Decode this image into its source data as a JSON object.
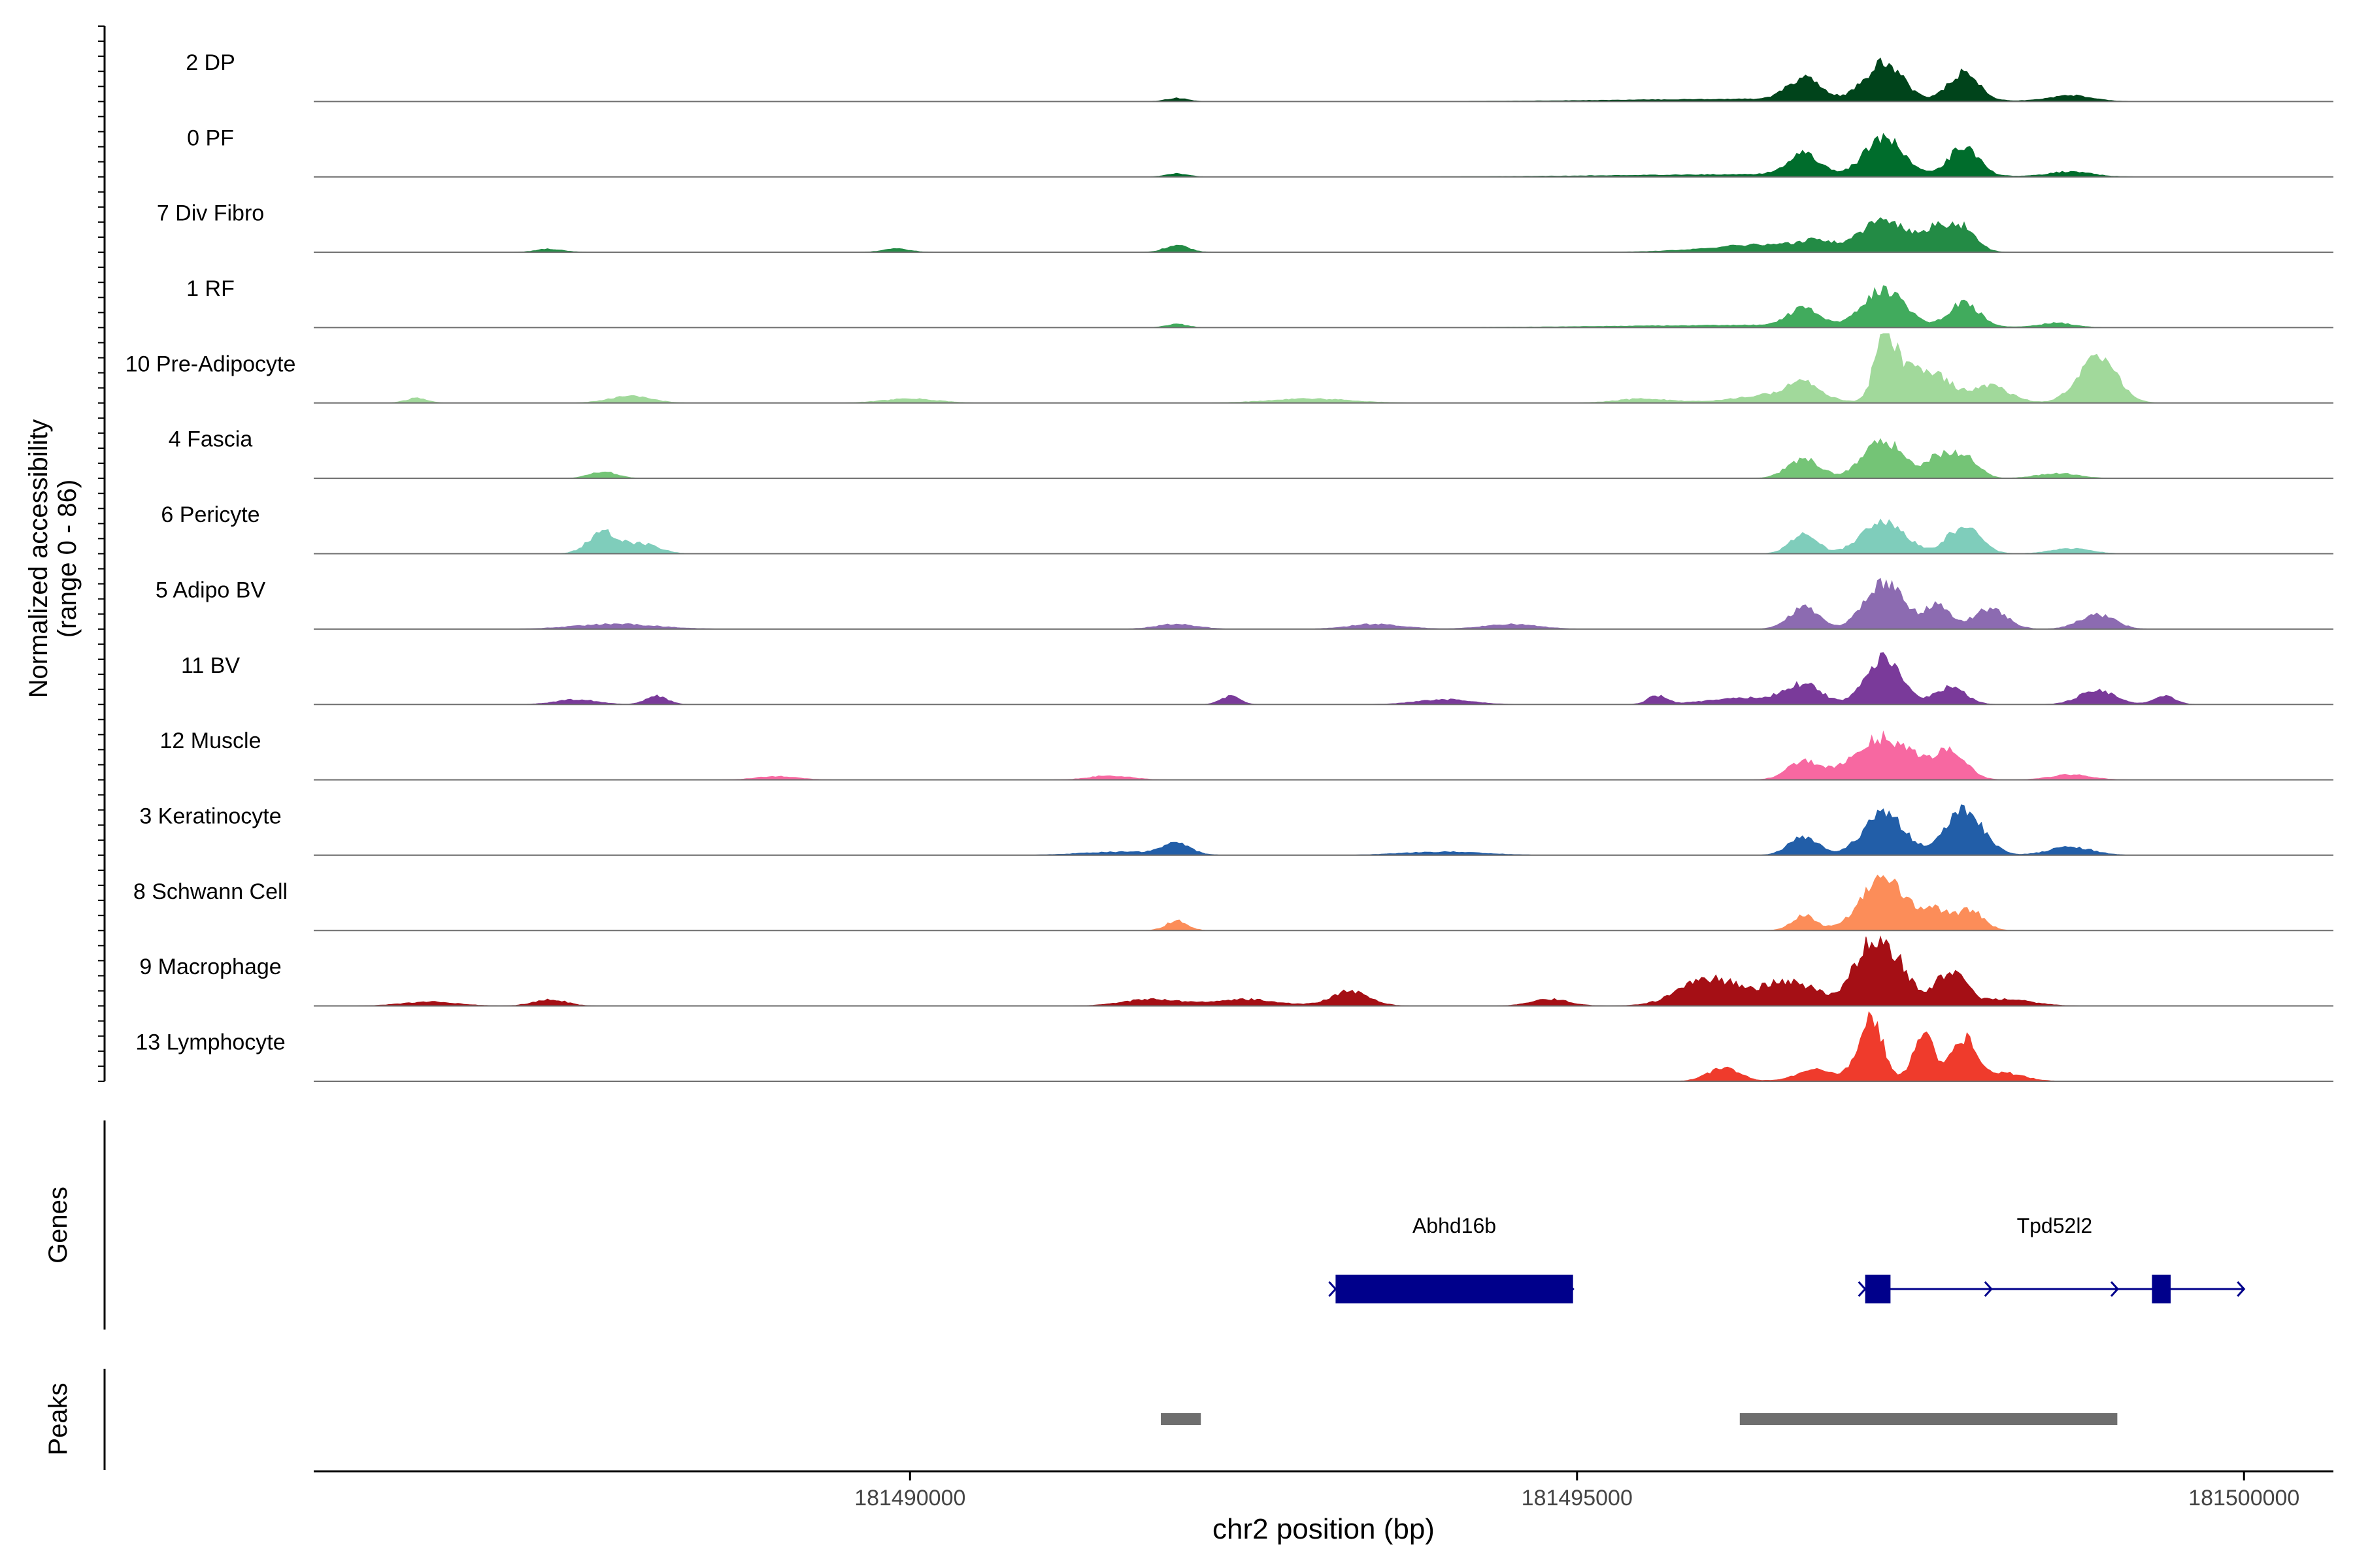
{
  "chart_data": {
    "type": "area",
    "title": "",
    "xlabel": "chr2 position (bp)",
    "ylabel_line1": "Normalized accessibility",
    "ylabel_line2": "(range 0 - 86)",
    "y_range": [
      0,
      86
    ],
    "x_range": [
      181485530,
      181500670
    ],
    "x_ticks": [
      181490000,
      181495000,
      181500000
    ],
    "x_tick_labels": [
      "181490000",
      "181495000",
      "181500000"
    ],
    "tracks": [
      {
        "name": "2 DP",
        "color": "#00441b",
        "peaks": [
          [
            181492000,
            4,
            80
          ],
          [
            181496500,
            3,
            1100
          ],
          [
            181496700,
            26,
            120
          ],
          [
            181497300,
            44,
            140
          ],
          [
            181497900,
            34,
            110
          ],
          [
            181498700,
            7,
            150
          ]
        ]
      },
      {
        "name": "0 PF",
        "color": "#006d2c",
        "peaks": [
          [
            181492000,
            4,
            80
          ],
          [
            181496500,
            3,
            1100
          ],
          [
            181496700,
            26,
            120
          ],
          [
            181497300,
            46,
            140
          ],
          [
            181497900,
            36,
            110
          ],
          [
            181498700,
            6,
            150
          ]
        ]
      },
      {
        "name": "7 Div Fibro",
        "color": "#238b45",
        "peaks": [
          [
            181487300,
            4,
            100
          ],
          [
            181489900,
            4,
            100
          ],
          [
            181492000,
            8,
            90
          ],
          [
            181496500,
            10,
            450
          ],
          [
            181496800,
            8,
            100
          ],
          [
            181497300,
            38,
            160
          ],
          [
            181497700,
            28,
            130
          ],
          [
            181497900,
            24,
            100
          ]
        ]
      },
      {
        "name": "1 RF",
        "color": "#41ab5d",
        "peaks": [
          [
            181492000,
            4,
            80
          ],
          [
            181496500,
            3,
            1100
          ],
          [
            181496700,
            22,
            110
          ],
          [
            181497300,
            44,
            150
          ],
          [
            181497900,
            30,
            110
          ],
          [
            181498600,
            5,
            120
          ]
        ]
      },
      {
        "name": "10 Pre-Adipocyte",
        "color": "#a1d99b",
        "peaks": [
          [
            181486300,
            6,
            80
          ],
          [
            181487900,
            8,
            160
          ],
          [
            181490000,
            5,
            200
          ],
          [
            181493000,
            5,
            300
          ],
          [
            181495500,
            5,
            200
          ],
          [
            181496500,
            10,
            300
          ],
          [
            181496700,
            18,
            120
          ],
          [
            181497300,
            74,
            70
          ],
          [
            181497450,
            40,
            120
          ],
          [
            181497700,
            30,
            120
          ],
          [
            181498100,
            20,
            150
          ],
          [
            181498900,
            60,
            140
          ]
        ]
      },
      {
        "name": "4 Fascia",
        "color": "#74c476",
        "peaks": [
          [
            181487700,
            8,
            100
          ],
          [
            181496700,
            24,
            120
          ],
          [
            181497300,
            46,
            150
          ],
          [
            181497700,
            24,
            90
          ],
          [
            181497900,
            30,
            100
          ],
          [
            181498600,
            6,
            150
          ]
        ]
      },
      {
        "name": "6 Pericyte",
        "color": "#7fcdbb",
        "peaks": [
          [
            181487700,
            26,
            110
          ],
          [
            181488000,
            12,
            120
          ],
          [
            181496700,
            24,
            100
          ],
          [
            181497300,
            40,
            160
          ],
          [
            181497900,
            34,
            120
          ],
          [
            181498700,
            6,
            150
          ]
        ]
      },
      {
        "name": "5 Adipo BV",
        "color": "#8c6bb1",
        "peaks": [
          [
            181487800,
            6,
            300
          ],
          [
            181492000,
            6,
            150
          ],
          [
            181493500,
            6,
            200
          ],
          [
            181494500,
            6,
            200
          ],
          [
            181496700,
            26,
            110
          ],
          [
            181497300,
            58,
            140
          ],
          [
            181497700,
            28,
            100
          ],
          [
            181498100,
            26,
            120
          ],
          [
            181498900,
            18,
            130
          ]
        ]
      },
      {
        "name": "11 BV",
        "color": "#7a3a9a",
        "peaks": [
          [
            181487500,
            6,
            150
          ],
          [
            181488100,
            10,
            80
          ],
          [
            181492400,
            10,
            70
          ],
          [
            181494000,
            6,
            200
          ],
          [
            181495600,
            10,
            70
          ],
          [
            181496300,
            8,
            300
          ],
          [
            181496700,
            22,
            130
          ],
          [
            181497300,
            56,
            130
          ],
          [
            181497800,
            22,
            110
          ],
          [
            181498900,
            18,
            130
          ],
          [
            181499400,
            10,
            80
          ]
        ]
      },
      {
        "name": "12 Muscle",
        "color": "#f768a1",
        "peaks": [
          [
            181489000,
            4,
            150
          ],
          [
            181491500,
            5,
            150
          ],
          [
            181496700,
            22,
            120
          ],
          [
            181497300,
            52,
            220
          ],
          [
            181497800,
            32,
            120
          ],
          [
            181498700,
            6,
            150
          ]
        ]
      },
      {
        "name": "3 Keratinocyte",
        "color": "#225ea8",
        "peaks": [
          [
            181492000,
            14,
            100
          ],
          [
            181491600,
            4,
            300
          ],
          [
            181494000,
            4,
            300
          ],
          [
            181496700,
            22,
            110
          ],
          [
            181497300,
            52,
            150
          ],
          [
            181497900,
            56,
            140
          ],
          [
            181498700,
            10,
            160
          ]
        ]
      },
      {
        "name": "8 Schwann Cell",
        "color": "#fc8d59",
        "peaks": [
          [
            181492000,
            12,
            80
          ],
          [
            181496700,
            18,
            90
          ],
          [
            181497300,
            62,
            170
          ],
          [
            181497700,
            22,
            100
          ],
          [
            181497950,
            24,
            100
          ]
        ]
      },
      {
        "name": "9 Macrophage",
        "color": "#a50f15",
        "peaks": [
          [
            181486400,
            5,
            200
          ],
          [
            181487300,
            8,
            120
          ],
          [
            181491800,
            8,
            200
          ],
          [
            181492500,
            8,
            250
          ],
          [
            181493300,
            18,
            140
          ],
          [
            181494800,
            8,
            140
          ],
          [
            181496000,
            34,
            220
          ],
          [
            181496600,
            30,
            200
          ],
          [
            181497200,
            72,
            130
          ],
          [
            181497400,
            40,
            120
          ],
          [
            181497800,
            42,
            110
          ],
          [
            181498200,
            8,
            200
          ]
        ]
      },
      {
        "name": "13 Lymphocyte",
        "color": "#ef3b2c",
        "peaks": [
          [
            181496100,
            16,
            120
          ],
          [
            181496800,
            14,
            150
          ],
          [
            181497200,
            78,
            90
          ],
          [
            181497600,
            58,
            80
          ],
          [
            181497900,
            52,
            90
          ],
          [
            181498200,
            10,
            150
          ]
        ]
      }
    ],
    "genes_label": "Genes",
    "genes": [
      {
        "name": "Abhd16b",
        "start": 181493190,
        "end": 181494970,
        "strand": "+",
        "exons": [
          [
            181493190,
            181494970
          ]
        ]
      },
      {
        "name": "Tpd52l2",
        "start": 181497160,
        "end": 181500000,
        "strand": "+",
        "exons": [
          [
            181497160,
            181497350
          ],
          [
            181499310,
            181499450
          ]
        ]
      }
    ],
    "peaks_label": "Peaks",
    "peak_regions": [
      [
        181491880,
        181492180
      ],
      [
        181496220,
        181499050
      ]
    ]
  }
}
